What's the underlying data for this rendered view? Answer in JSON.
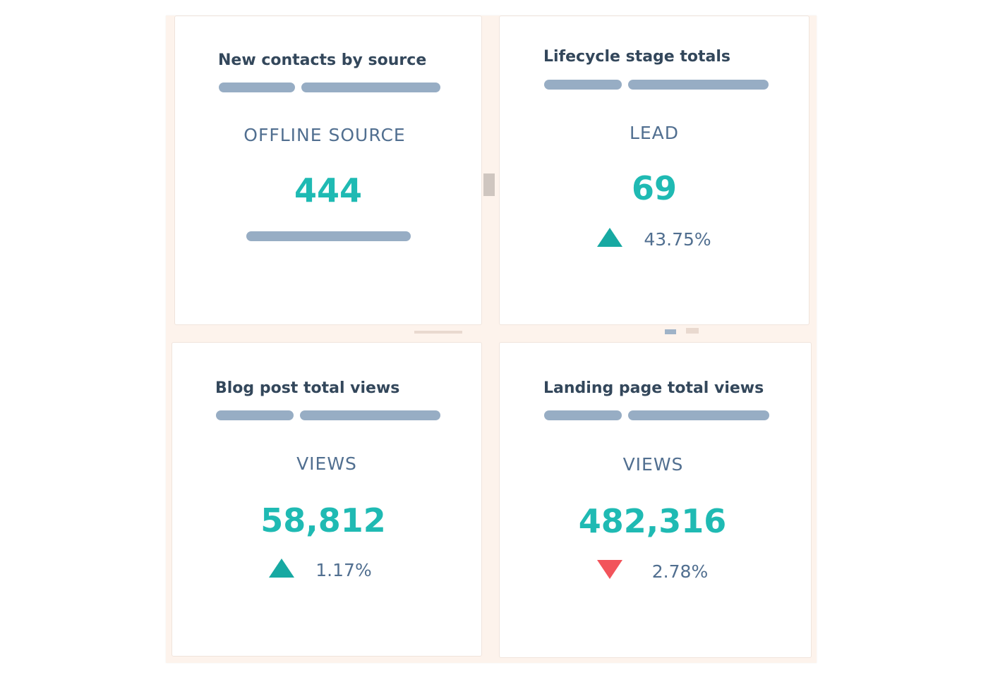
{
  "cards": [
    {
      "title": "New contacts by source",
      "label": "OFFLINE SOURCE",
      "value": "444"
    },
    {
      "title": "Lifecycle stage totals",
      "label": "LEAD",
      "value": "69",
      "change": "43.75%",
      "direction": "up"
    },
    {
      "title": "Blog post total views",
      "label": "VIEWS",
      "value": "58,812",
      "change": "1.17%",
      "direction": "up"
    },
    {
      "title": "Landing page total views",
      "label": "VIEWS",
      "value": "482,316",
      "change": "2.78%",
      "direction": "down"
    }
  ],
  "colors": {
    "accent": "#1fbab3",
    "up": "#17a9a2",
    "down": "#f2545b",
    "placeholder": "#97adc4",
    "title": "#33475b"
  }
}
